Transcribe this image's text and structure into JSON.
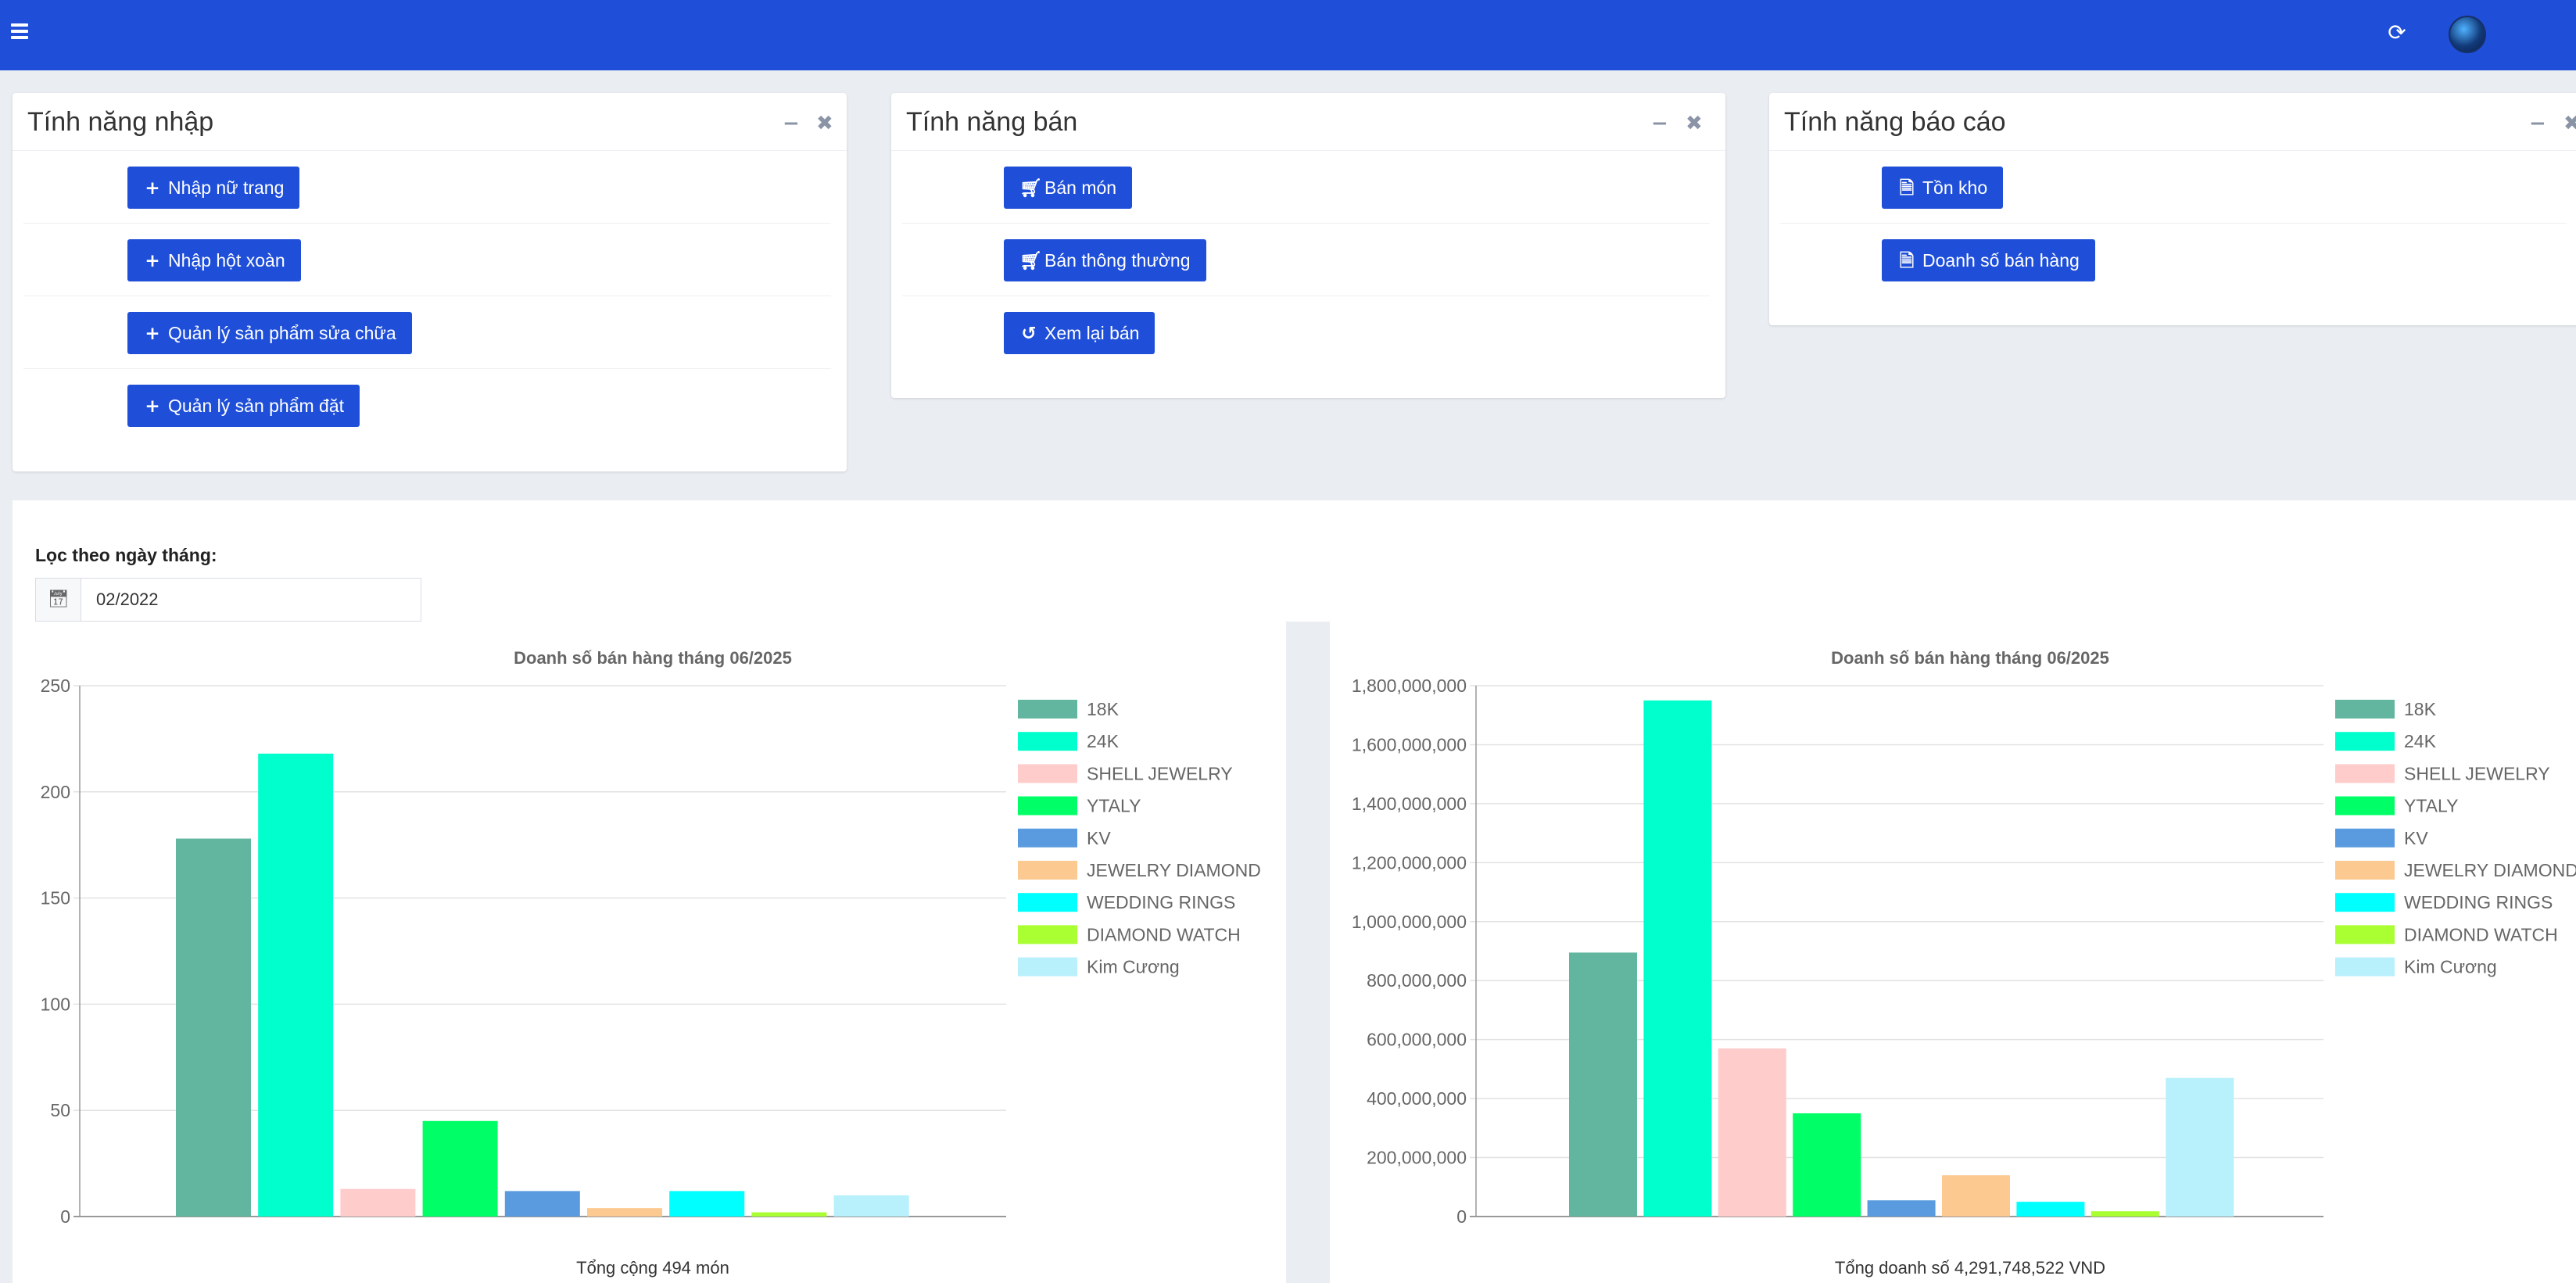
{
  "topbar": {
    "menu_icon": "hamburger-icon",
    "refresh_icon": "refresh-icon",
    "avatar": "user-avatar"
  },
  "panels": {
    "import": {
      "title": "Tính năng nhập",
      "buttons": [
        {
          "icon": "plus-icon",
          "label": "Nhập nữ trang"
        },
        {
          "icon": "plus-icon",
          "label": "Nhập hột xoàn"
        },
        {
          "icon": "plus-icon",
          "label": "Quản lý sản phẩm sửa chữa"
        },
        {
          "icon": "plus-icon",
          "label": "Quản lý sản phẩm đặt"
        }
      ]
    },
    "sales": {
      "title": "Tính năng bán",
      "buttons": [
        {
          "icon": "cart-icon",
          "label": "Bán món"
        },
        {
          "icon": "cart-icon",
          "label": "Bán thông thường"
        },
        {
          "icon": "history-icon",
          "label": "Xem lại bán"
        }
      ]
    },
    "reports": {
      "title": "Tính năng báo cáo",
      "buttons": [
        {
          "icon": "file-pdf-icon",
          "label": "Tồn kho"
        },
        {
          "icon": "file-pdf-icon",
          "label": "Doanh số bán hàng"
        }
      ]
    }
  },
  "filter": {
    "label": "Lọc theo ngày tháng:",
    "value": "02/2022",
    "icon": "calendar-icon"
  },
  "chart_data": [
    {
      "type": "bar",
      "title": "Doanh số bán hàng tháng 06/2025",
      "categories": [
        "18K",
        "24K",
        "SHELL JEWELRY",
        "YTALY",
        "KV",
        "JEWELRY DIAMOND",
        "WEDDING RINGS",
        "DIAMOND WATCH",
        "Kim Cương"
      ],
      "values": [
        178,
        218,
        13,
        45,
        12,
        4,
        12,
        2,
        10
      ],
      "colors": [
        "#62b59e",
        "#00ffcc",
        "#ffcccc",
        "#00ff66",
        "#5a9adf",
        "#fcc991",
        "#00ffff",
        "#aaff33",
        "#b8f0fb"
      ],
      "ylim": [
        0,
        250
      ],
      "yticks": [
        0,
        50,
        100,
        150,
        200,
        250
      ],
      "ytick_labels": [
        "0",
        "50",
        "100",
        "150",
        "200",
        "250"
      ],
      "grid": true,
      "legend": "right",
      "footer": "Tổng cộng 494 món"
    },
    {
      "type": "bar",
      "title": "Doanh số bán hàng tháng 06/2025",
      "categories": [
        "18K",
        "24K",
        "SHELL JEWELRY",
        "YTALY",
        "KV",
        "JEWELRY DIAMOND",
        "WEDDING RINGS",
        "DIAMOND WATCH",
        "Kim Cương"
      ],
      "values": [
        895000000,
        1750000000,
        570000000,
        350000000,
        55000000,
        140000000,
        50000000,
        18000000,
        470000000
      ],
      "colors": [
        "#62b59e",
        "#00ffcc",
        "#ffcccc",
        "#00ff66",
        "#5a9adf",
        "#fcc991",
        "#00ffff",
        "#aaff33",
        "#b8f0fb"
      ],
      "ylim": [
        0,
        1800000000
      ],
      "yticks": [
        0,
        200000000,
        400000000,
        600000000,
        800000000,
        1000000000,
        1200000000,
        1400000000,
        1600000000,
        1800000000
      ],
      "ytick_labels": [
        "0",
        "200,000,000",
        "400,000,000",
        "600,000,000",
        "800,000,000",
        "1,000,000,000",
        "1,200,000,000",
        "1,400,000,000",
        "1,600,000,000",
        "1,800,000,000"
      ],
      "grid": true,
      "legend": "right",
      "footer": "Tổng doanh số 4,291,748,522 VND"
    }
  ]
}
